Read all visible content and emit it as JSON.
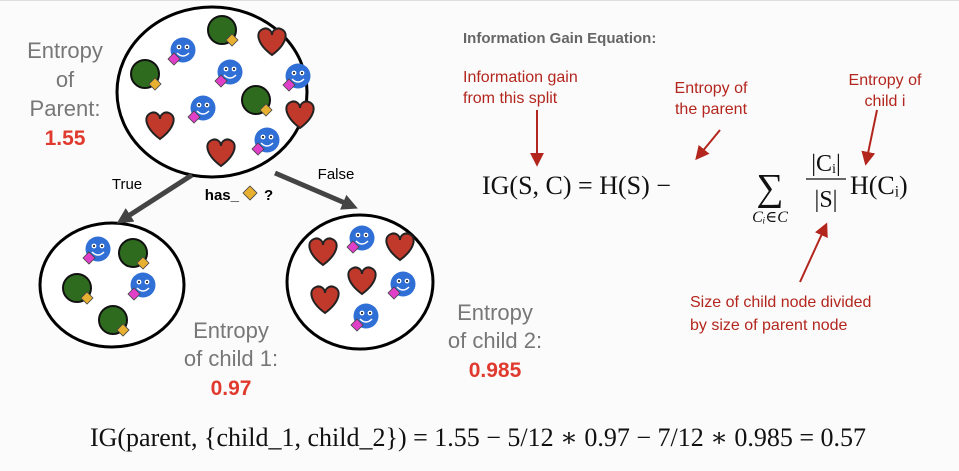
{
  "tree": {
    "parent": {
      "label_lines": [
        "Entropy",
        "of",
        "Parent:"
      ],
      "entropy": 1.55
    },
    "split": {
      "question_prefix": "has_",
      "question_suffix": "?",
      "true_label": "True",
      "false_label": "False"
    },
    "child_1": {
      "label_lines": [
        "Entropy",
        "of child 1:"
      ],
      "entropy": 0.97
    },
    "child_2": {
      "label_lines": [
        "Entropy",
        "of child 2:"
      ],
      "entropy": 0.985
    }
  },
  "equation_panel": {
    "title": "Information Gain Equation:",
    "annotations": {
      "information_gain": [
        "Information gain",
        "from this split"
      ],
      "parent_entropy": [
        "Entropy of",
        "the parent"
      ],
      "child_entropy": [
        "Entropy of",
        "child i"
      ],
      "size_ratio": [
        "Size of child node divided",
        "by size of parent node"
      ]
    },
    "formula": {
      "lhs": "IG(S, C) = H(S) −",
      "sum_symbol": "∑",
      "sum_index": "Cᵢ∈C",
      "numerator": "|Cᵢ|",
      "denominator": "|S|",
      "rhs": "H(Cᵢ)"
    }
  },
  "worked_example": "IG(parent, {child_1, child_2}) = 1.55 − 5/12 ∗ 0.97 − 7/12 ∗ 0.985 = 0.57"
}
